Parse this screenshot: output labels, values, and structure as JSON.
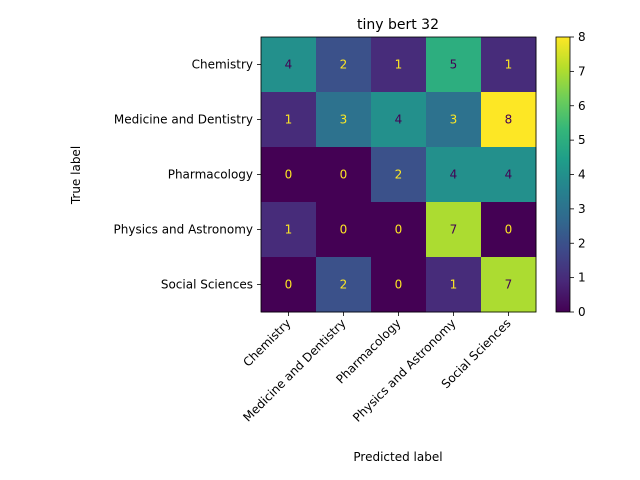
{
  "chart_data": {
    "type": "heatmap",
    "title": "tiny bert 32",
    "xlabel": "Predicted label",
    "ylabel": "True label",
    "x_categories": [
      "Chemistry",
      "Medicine and Dentistry",
      "Pharmacology",
      "Physics and Astronomy",
      "Social Sciences"
    ],
    "y_categories": [
      "Chemistry",
      "Medicine and Dentistry",
      "Pharmacology",
      "Physics and Astronomy",
      "Social Sciences"
    ],
    "matrix": [
      [
        4,
        2,
        1,
        5,
        1
      ],
      [
        1,
        3,
        4,
        3,
        8
      ],
      [
        0,
        0,
        2,
        4,
        4
      ],
      [
        1,
        0,
        0,
        7,
        0
      ],
      [
        0,
        2,
        0,
        1,
        7
      ]
    ],
    "colorbar": {
      "min": 0,
      "max": 8,
      "ticks": [
        0,
        1,
        2,
        3,
        4,
        5,
        6,
        7,
        8
      ],
      "colormap": "viridis"
    },
    "text_colors": {
      "dark_cell": "#fde725",
      "light_cell": "#440154"
    }
  }
}
